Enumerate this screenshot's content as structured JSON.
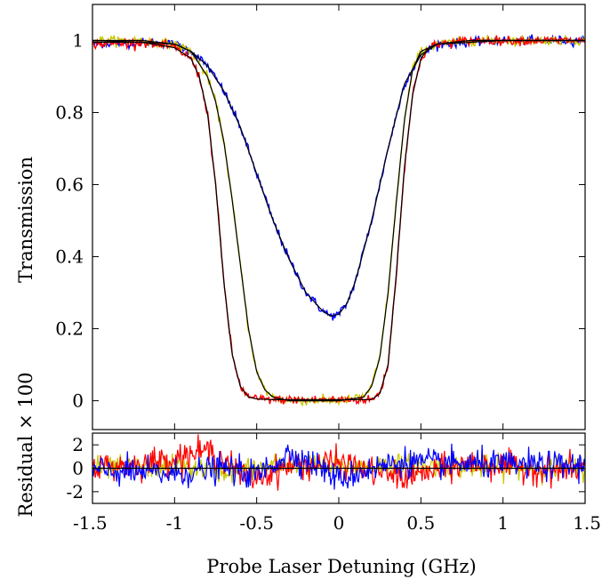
{
  "chart_data": [
    {
      "type": "line",
      "panel": "main",
      "xlabel": "Probe Laser Detuning (GHz)",
      "ylabel": "Transmission",
      "xlim": [
        -1.5,
        1.5
      ],
      "ylim": [
        -0.08,
        1.1
      ],
      "xticks": [
        -1.5,
        -1,
        -0.5,
        0,
        0.5,
        1,
        1.5
      ],
      "xtick_labels": [
        "-1.5",
        "-1",
        "-0.5",
        "0",
        "0.5",
        "1",
        "1.5"
      ],
      "yticks": [
        0,
        0.2,
        0.4,
        0.6,
        0.8,
        1
      ],
      "ytick_labels": [
        "0",
        "0.2",
        "0.4",
        "0.6",
        "0.8",
        "1"
      ],
      "grid": false,
      "series": [
        {
          "color": "#0000ff",
          "style": "noisy-data",
          "x": [
            -1.5,
            -1.2,
            -1.0,
            -0.9,
            -0.8,
            -0.7,
            -0.6,
            -0.5,
            -0.4,
            -0.3,
            -0.2,
            -0.1,
            -0.05,
            0.0,
            0.05,
            0.1,
            0.2,
            0.3,
            0.4,
            0.5,
            0.6,
            0.8,
            1.0,
            1.5
          ],
          "y": [
            0.99,
            0.995,
            0.99,
            0.97,
            0.93,
            0.86,
            0.76,
            0.63,
            0.5,
            0.39,
            0.3,
            0.25,
            0.235,
            0.24,
            0.27,
            0.33,
            0.5,
            0.7,
            0.88,
            0.96,
            0.99,
            0.995,
            1.0,
            1.0
          ]
        },
        {
          "color": "#c8c800",
          "style": "noisy-data",
          "x": [
            -1.5,
            -1.2,
            -1.0,
            -0.9,
            -0.8,
            -0.75,
            -0.7,
            -0.65,
            -0.6,
            -0.55,
            -0.5,
            -0.45,
            -0.4,
            -0.3,
            0.0,
            0.15,
            0.2,
            0.25,
            0.3,
            0.35,
            0.4,
            0.45,
            0.5,
            0.6,
            0.8,
            1.5
          ],
          "y": [
            1.0,
            1.0,
            0.99,
            0.97,
            0.9,
            0.83,
            0.72,
            0.56,
            0.38,
            0.2,
            0.08,
            0.03,
            0.01,
            0.0,
            0.0,
            0.01,
            0.04,
            0.12,
            0.3,
            0.55,
            0.78,
            0.92,
            0.97,
            0.99,
            1.0,
            1.0
          ]
        },
        {
          "color": "#ff0000",
          "style": "noisy-data",
          "x": [
            -1.5,
            -1.2,
            -1.0,
            -0.9,
            -0.85,
            -0.8,
            -0.75,
            -0.7,
            -0.65,
            -0.6,
            -0.55,
            -0.5,
            -0.4,
            0.0,
            0.2,
            0.25,
            0.3,
            0.35,
            0.4,
            0.45,
            0.5,
            0.55,
            0.6,
            0.8,
            1.5
          ],
          "y": [
            0.99,
            0.995,
            0.98,
            0.95,
            0.9,
            0.8,
            0.6,
            0.33,
            0.13,
            0.04,
            0.01,
            0.005,
            0.003,
            0.003,
            0.003,
            0.02,
            0.1,
            0.35,
            0.65,
            0.85,
            0.95,
            0.98,
            0.99,
            1.0,
            1.0
          ]
        },
        {
          "color": "#000000",
          "style": "fit",
          "x": [
            -1.5,
            -1.2,
            -1.0,
            -0.9,
            -0.8,
            -0.7,
            -0.6,
            -0.5,
            -0.4,
            -0.3,
            -0.2,
            -0.1,
            -0.05,
            0.0,
            0.05,
            0.1,
            0.2,
            0.3,
            0.4,
            0.5,
            0.6,
            0.8,
            1.0,
            1.5
          ],
          "y": [
            1.0,
            0.995,
            0.99,
            0.97,
            0.93,
            0.86,
            0.76,
            0.63,
            0.5,
            0.39,
            0.3,
            0.25,
            0.235,
            0.24,
            0.27,
            0.33,
            0.5,
            0.7,
            0.88,
            0.96,
            0.99,
            0.995,
            1.0,
            1.0
          ]
        },
        {
          "color": "#000000",
          "style": "fit",
          "x": [
            -1.5,
            -1.2,
            -1.0,
            -0.9,
            -0.8,
            -0.75,
            -0.7,
            -0.65,
            -0.6,
            -0.55,
            -0.5,
            -0.45,
            -0.4,
            -0.3,
            0.0,
            0.15,
            0.2,
            0.25,
            0.3,
            0.35,
            0.4,
            0.45,
            0.5,
            0.6,
            0.8,
            1.5
          ],
          "y": [
            1.0,
            1.0,
            0.99,
            0.97,
            0.9,
            0.83,
            0.72,
            0.56,
            0.38,
            0.2,
            0.08,
            0.03,
            0.01,
            0.0,
            0.0,
            0.01,
            0.04,
            0.12,
            0.3,
            0.55,
            0.78,
            0.92,
            0.97,
            0.99,
            1.0,
            1.0
          ]
        },
        {
          "color": "#000000",
          "style": "fit",
          "x": [
            -1.5,
            -1.2,
            -1.0,
            -0.9,
            -0.85,
            -0.8,
            -0.75,
            -0.7,
            -0.65,
            -0.6,
            -0.55,
            -0.5,
            -0.4,
            0.0,
            0.2,
            0.25,
            0.3,
            0.35,
            0.4,
            0.45,
            0.5,
            0.55,
            0.6,
            0.8,
            1.5
          ],
          "y": [
            0.995,
            0.995,
            0.98,
            0.95,
            0.9,
            0.8,
            0.6,
            0.33,
            0.13,
            0.04,
            0.01,
            0.005,
            0.003,
            0.003,
            0.003,
            0.02,
            0.1,
            0.35,
            0.65,
            0.85,
            0.95,
            0.98,
            0.99,
            1.0,
            1.0
          ]
        }
      ]
    },
    {
      "type": "line",
      "panel": "residual",
      "xlabel": "Probe Laser Detuning (GHz)",
      "ylabel": "Residual × 100",
      "xlim": [
        -1.5,
        1.5
      ],
      "ylim": [
        -3,
        3
      ],
      "yticks": [
        -2,
        0,
        2
      ],
      "ytick_labels": [
        "-2",
        "0",
        "2"
      ],
      "grid": false,
      "zero_line": true,
      "series": [
        {
          "color": "#c8c800",
          "amplitude": 0.8,
          "trend_x": [
            -1.5,
            -1.0,
            -0.7,
            -0.5,
            -0.3,
            0.0,
            0.3,
            0.6,
            1.0,
            1.5
          ],
          "trend_y": [
            0.0,
            0.2,
            -0.3,
            0.0,
            0.4,
            0.0,
            0.3,
            0.2,
            0.1,
            0.0
          ]
        },
        {
          "color": "#ff0000",
          "amplitude": 1.0,
          "trend_x": [
            -1.5,
            -1.2,
            -1.0,
            -0.8,
            -0.7,
            -0.6,
            -0.5,
            -0.3,
            0.0,
            0.2,
            0.4,
            0.5,
            0.8,
            1.0,
            1.3,
            1.5
          ],
          "trend_y": [
            0.1,
            0.4,
            0.9,
            1.5,
            0.8,
            -0.5,
            -0.8,
            0.2,
            0.5,
            -0.2,
            -0.8,
            -0.5,
            0.4,
            0.2,
            -0.2,
            0.0
          ]
        },
        {
          "color": "#0000ff",
          "amplitude": 1.0,
          "trend_x": [
            -1.5,
            -1.0,
            -0.7,
            -0.5,
            -0.3,
            -0.1,
            0.0,
            0.2,
            0.4,
            0.6,
            1.0,
            1.5
          ],
          "trend_y": [
            -0.2,
            -0.5,
            0.0,
            -0.6,
            1.3,
            0.0,
            -1.0,
            0.0,
            0.6,
            0.4,
            0.3,
            0.2
          ]
        }
      ]
    }
  ]
}
